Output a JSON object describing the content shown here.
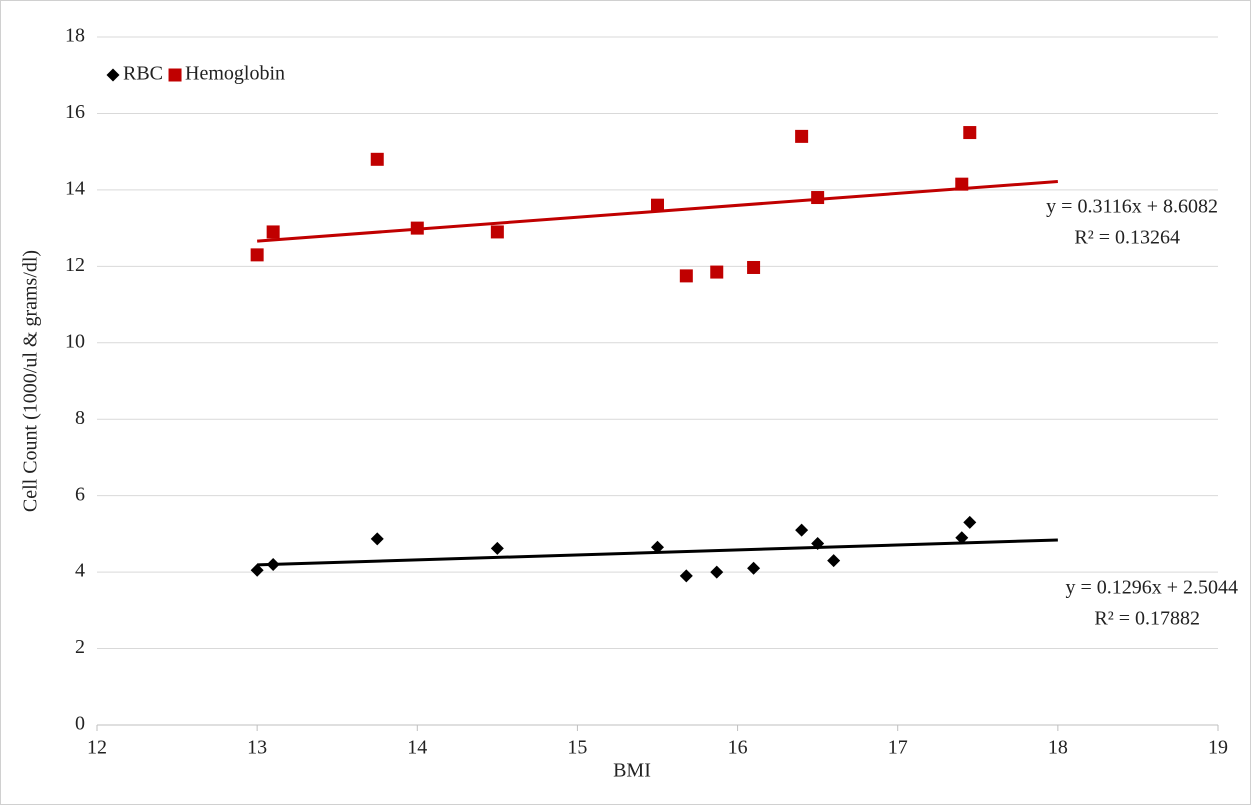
{
  "chart_data": {
    "type": "scatter",
    "x_label": "BMI",
    "y_label": "Cell Count (1000/ul & grams/dl)",
    "xlim": [
      12,
      19
    ],
    "xticks": [
      12,
      13,
      14,
      15,
      16,
      17,
      18,
      19
    ],
    "ylim": [
      0,
      18
    ],
    "yticks": [
      0,
      2,
      4,
      6,
      8,
      10,
      12,
      14,
      16,
      18
    ],
    "grid": true,
    "legend": "top-left",
    "series": [
      {
        "name": "RBC",
        "color": "#000000",
        "marker": "diamond",
        "x": [
          13.0,
          13.1,
          13.75,
          14.5,
          15.5,
          15.68,
          15.87,
          16.1,
          16.4,
          16.5,
          16.6,
          17.4,
          17.45
        ],
        "values": [
          4.05,
          4.2,
          4.87,
          4.62,
          4.65,
          3.9,
          4.0,
          4.1,
          5.1,
          4.75,
          4.3,
          4.9,
          5.3
        ],
        "trendline": {
          "x": [
            13,
            18
          ],
          "values": [
            4.19,
            4.84
          ],
          "equation": "y = 0.1296x + 2.5044",
          "r2": "R² = 0.17882"
        }
      },
      {
        "name": "Hemoglobin",
        "color": "#c00000",
        "marker": "square",
        "x": [
          13.0,
          13.1,
          13.75,
          14.0,
          14.5,
          15.5,
          15.68,
          15.87,
          16.1,
          16.4,
          16.5,
          17.4,
          17.45
        ],
        "values": [
          12.3,
          12.9,
          14.8,
          13.0,
          12.9,
          13.6,
          11.75,
          11.85,
          11.97,
          15.4,
          13.8,
          14.15,
          15.5
        ],
        "trendline": {
          "x": [
            13,
            18
          ],
          "values": [
            12.66,
            14.22
          ],
          "equation": "y = 0.3116x + 8.6082",
          "r2": "R² = 0.13264"
        }
      }
    ]
  }
}
